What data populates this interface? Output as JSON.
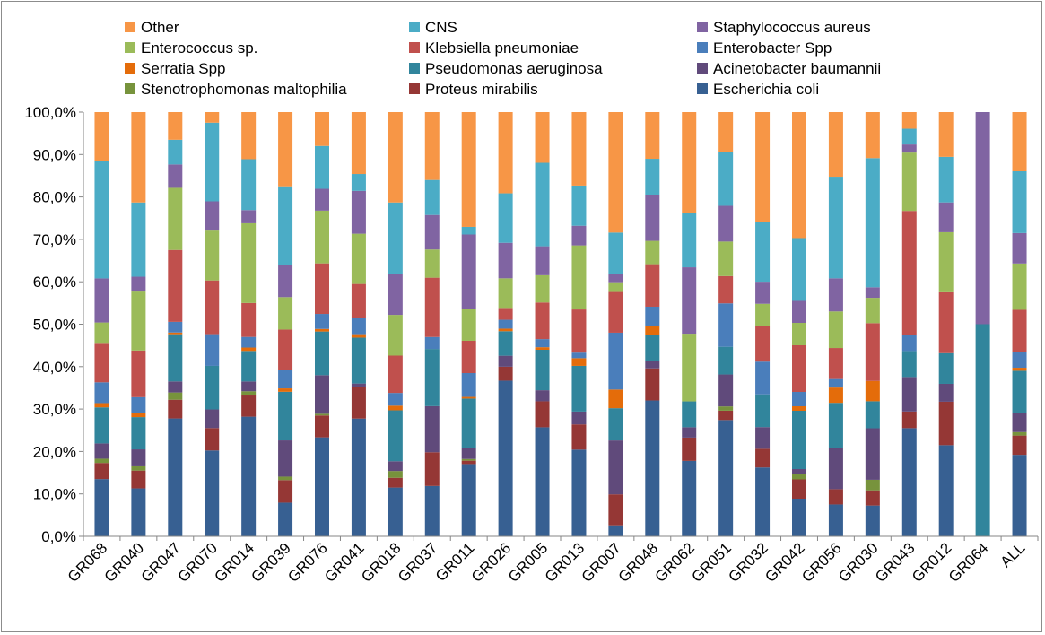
{
  "chart_data": {
    "type": "bar",
    "stacked": true,
    "title": "",
    "xlabel": "",
    "ylabel": "",
    "ylim": [
      0,
      100
    ],
    "y_ticks": [
      "0,0%",
      "10,0%",
      "20,0%",
      "30,0%",
      "40,0%",
      "50,0%",
      "60,0%",
      "70,0%",
      "80,0%",
      "90,0%",
      "100,0%"
    ],
    "grid": false,
    "legend_position": "top",
    "categories": [
      "GR068",
      "GR040",
      "GR047",
      "GR070",
      "GR014",
      "GR039",
      "GR076",
      "GR041",
      "GR018",
      "GR037",
      "GR011",
      "GR026",
      "GR005",
      "GR013",
      "GR007",
      "GR048",
      "GR062",
      "GR051",
      "GR032",
      "GR042",
      "GR056",
      "GR030",
      "GR043",
      "GR012",
      "GR064",
      "ALL"
    ],
    "series": [
      {
        "name": "Escherichia coli",
        "color": "#376092",
        "values": [
          13.5,
          11.3,
          27.7,
          20.3,
          28.2,
          7.9,
          23.1,
          27.2,
          11.5,
          11.8,
          17.0,
          36.8,
          25.6,
          20.3,
          2.6,
          32.6,
          17.5,
          27.3,
          16.2,
          8.4,
          7.5,
          7.3,
          25.4,
          21.4,
          0,
          19.0
        ]
      },
      {
        "name": "Proteus mirabilis",
        "color": "#953735",
        "values": [
          3.8,
          4.2,
          4.4,
          5.3,
          5.2,
          5.3,
          5.1,
          7.3,
          2.3,
          7.9,
          0.8,
          3.3,
          6.1,
          5.9,
          7.3,
          7.7,
          5.4,
          2.2,
          4.4,
          4.3,
          3.6,
          3.6,
          3.9,
          10.2,
          0,
          4.5
        ]
      },
      {
        "name": "Stenotrophomonas maltophilia",
        "color": "#77933C",
        "values": [
          1.0,
          1.0,
          1.7,
          0,
          0.8,
          0.8,
          0.4,
          0,
          1.6,
          0,
          0.4,
          0,
          0,
          0,
          0,
          0,
          0,
          1.0,
          0,
          1.3,
          0,
          2.5,
          0,
          0,
          0,
          0.8
        ]
      },
      {
        "name": "Acinetobacter baumannii",
        "color": "#604A7B",
        "values": [
          3.6,
          4.0,
          2.6,
          4.4,
          2.3,
          8.5,
          9.0,
          0.8,
          2.3,
          10.8,
          2.6,
          2.6,
          2.6,
          3.0,
          12.7,
          1.7,
          2.4,
          7.5,
          5.1,
          1.0,
          9.6,
          12.2,
          8.1,
          4.2,
          0,
          4.5
        ]
      },
      {
        "name": "Pseudomonas aeruginosa",
        "color": "#31859C",
        "values": [
          8.5,
          7.6,
          11.1,
          10.3,
          7.2,
          11.4,
          10.2,
          10.6,
          12.0,
          13.4,
          11.6,
          5.8,
          9.5,
          10.7,
          7.6,
          6.4,
          6.0,
          6.5,
          7.7,
          13.0,
          10.7,
          6.4,
          6.1,
          7.2,
          50.0,
          9.8
        ]
      },
      {
        "name": "Serratia Spp",
        "color": "#E46C0A",
        "values": [
          1.0,
          0.9,
          0.4,
          0,
          0.8,
          0.8,
          0.6,
          0.8,
          1.1,
          0,
          0.4,
          0.6,
          0.6,
          1.8,
          4.4,
          2.0,
          0,
          0,
          0,
          1.0,
          3.6,
          4.8,
          0,
          0,
          0,
          0.7
        ]
      },
      {
        "name": "Enterobacter Spp",
        "color": "#4A7EBB",
        "values": [
          4.9,
          3.8,
          2.5,
          7.5,
          2.5,
          4.3,
          3.5,
          3.8,
          3.0,
          2.8,
          5.6,
          2.1,
          1.9,
          1.3,
          13.4,
          4.7,
          0,
          10.2,
          7.7,
          3.2,
          2.0,
          0,
          3.7,
          0,
          0,
          3.6
        ]
      },
      {
        "name": "Klebsiella pneumoniae",
        "color": "#C0504D",
        "values": [
          9.3,
          11.0,
          16.9,
          12.7,
          8.0,
          9.5,
          11.8,
          7.8,
          8.8,
          13.9,
          7.6,
          2.8,
          8.6,
          10.1,
          9.6,
          10.2,
          0,
          6.4,
          8.3,
          10.4,
          7.3,
          13.7,
          29.2,
          14.3,
          0,
          9.9
        ]
      },
      {
        "name": "Enterococcus sp.",
        "color": "#9BBB59",
        "values": [
          4.8,
          13.9,
          14.6,
          12.0,
          18.8,
          7.6,
          12.3,
          11.6,
          9.6,
          6.6,
          7.5,
          7.0,
          6.4,
          15.0,
          2.3,
          5.6,
          15.7,
          8.1,
          5.3,
          5.0,
          8.6,
          6.0,
          13.7,
          14.1,
          0,
          10.8
        ]
      },
      {
        "name": "Staphylococcus aureus",
        "color": "#8064A2",
        "values": [
          10.4,
          3.5,
          5.5,
          6.7,
          3.1,
          7.6,
          5.1,
          9.9,
          9.7,
          8.1,
          17.5,
          8.4,
          6.8,
          4.6,
          2.0,
          11.1,
          15.4,
          8.4,
          5.2,
          4.9,
          7.8,
          2.5,
          1.9,
          7.0,
          50.0,
          7.1
        ]
      },
      {
        "name": "CNS",
        "color": "#4BACC6",
        "values": [
          27.7,
          17.5,
          5.8,
          18.6,
          12.0,
          18.4,
          10.0,
          3.9,
          16.8,
          8.2,
          1.8,
          11.7,
          19.6,
          9.4,
          9.7,
          8.6,
          12.5,
          12.6,
          14.1,
          14.0,
          23.9,
          30.6,
          3.7,
          10.7,
          0,
          14.4
        ]
      },
      {
        "name": "Other",
        "color": "#F79646",
        "values": [
          11.5,
          21.3,
          6.5,
          2.5,
          11.1,
          17.4,
          7.9,
          14.3,
          21.3,
          15.9,
          27.0,
          19.2,
          11.9,
          17.2,
          28.4,
          11.2,
          23.5,
          9.4,
          25.8,
          28.1,
          15.2,
          10.9,
          3.9,
          10.5,
          0,
          13.8
        ]
      }
    ]
  },
  "legend_order": [
    "Other",
    "CNS",
    "Staphylococcus aureus",
    "Enterococcus sp.",
    "Klebsiella pneumoniae",
    "Enterobacter Spp",
    "Serratia Spp",
    "Pseudomonas aeruginosa",
    "Acinetobacter baumannii",
    "Stenotrophomonas maltophilia",
    "Proteus mirabilis",
    "Escherichia coli"
  ]
}
